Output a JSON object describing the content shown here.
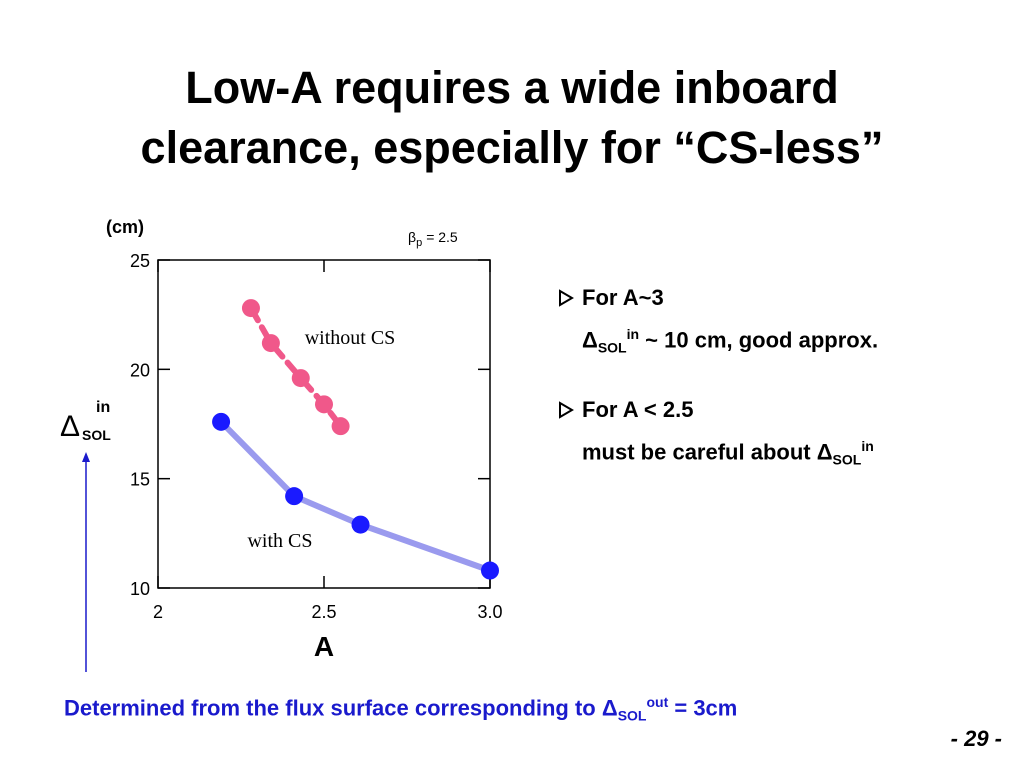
{
  "title": "Low-A requires a wide inboard clearance, especially for “CS-less”",
  "chart_data": {
    "type": "line",
    "y_unit": "(cm)",
    "annotation": {
      "symbol": "β",
      "subscript": "p",
      "text": "= 2.5"
    },
    "ylabel": {
      "symbol": "Δ",
      "subscript": "SOL",
      "superscript": "in"
    },
    "xlabel": "A",
    "xlim": [
      2,
      3
    ],
    "xticks": [
      2,
      2.5,
      {
        "value": 3,
        "label": "3.0"
      }
    ],
    "ylim": [
      10,
      25
    ],
    "yticks": [
      10,
      15,
      20,
      25
    ],
    "series": [
      {
        "name": "without CS",
        "color": "#f0588a",
        "line_style": "dashed",
        "x": [
          2.28,
          2.34,
          2.43,
          2.5,
          2.55
        ],
        "values": [
          22.8,
          21.2,
          19.6,
          18.4,
          17.4
        ]
      },
      {
        "name": "with CS",
        "color": "#1a1aff",
        "line_color": "#9a9aee",
        "line_style": "solid",
        "x": [
          2.19,
          2.41,
          2.61,
          3.0
        ],
        "values": [
          17.6,
          14.2,
          12.9,
          10.8
        ]
      }
    ]
  },
  "bullets": [
    {
      "heading": "For A~3",
      "line": {
        "symbol": "Δ",
        "subscript": "SOL",
        "superscript": "in",
        "text": "~ 10 cm, good approx."
      }
    },
    {
      "heading": "For A < 2.5",
      "line": {
        "text": "must be careful about",
        "symbol": "Δ",
        "subscript": "SOL",
        "superscript": "in"
      }
    }
  ],
  "footer": {
    "text": "Determined from the flux surface corresponding to",
    "symbol": "Δ",
    "subscript": "SOL",
    "superscript": "out",
    "tail": "= 3cm"
  },
  "page_number": "- 29 -"
}
